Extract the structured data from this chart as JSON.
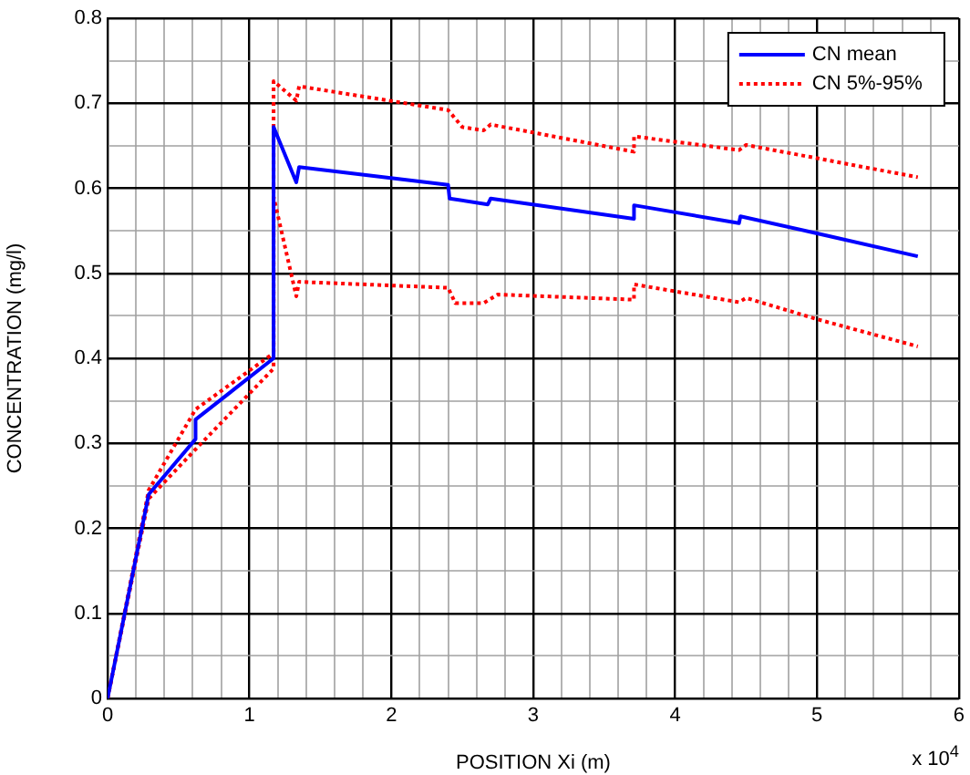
{
  "chart_data": {
    "type": "line",
    "xlabel": "POSITION Xi (m)",
    "ylabel": "CONCENTRATION (mg/l)",
    "annotations": [
      "x 10$^{4}$"
    ],
    "xlim": [
      0,
      6
    ],
    "ylim": [
      0,
      0.8
    ],
    "xticks": [
      0,
      {
        "value": 0.2,
        "label": null
      },
      {
        "value": 0.4,
        "label": null
      },
      {
        "value": 0.6,
        "label": null
      },
      {
        "value": 0.8,
        "label": null
      },
      1,
      {
        "value": 1.2,
        "label": null
      },
      {
        "value": 1.4,
        "label": null
      },
      {
        "value": 1.6,
        "label": null
      },
      {
        "value": 1.8,
        "label": null
      },
      2,
      {
        "value": 2.2,
        "label": null
      },
      {
        "value": 2.4,
        "label": null
      },
      {
        "value": 2.6,
        "label": null
      },
      {
        "value": 2.8,
        "label": null
      },
      3,
      {
        "value": 3.2,
        "label": null
      },
      {
        "value": 3.4,
        "label": null
      },
      {
        "value": 3.6,
        "label": null
      },
      {
        "value": 3.8,
        "label": null
      },
      4,
      {
        "value": 4.2,
        "label": null
      },
      {
        "value": 4.4,
        "label": null
      },
      {
        "value": 4.6,
        "label": null
      },
      {
        "value": 4.8,
        "label": null
      },
      5,
      {
        "value": 5.2,
        "label": null
      },
      {
        "value": 5.4,
        "label": null
      },
      {
        "value": 5.6,
        "label": null
      },
      {
        "value": 5.8,
        "label": null
      },
      6
    ],
    "yticks": [
      0,
      {
        "value": 0.05,
        "label": null
      },
      0.1,
      {
        "value": 0.15,
        "label": null
      },
      0.2,
      {
        "value": 0.25,
        "label": null
      },
      0.3,
      {
        "value": 0.35,
        "label": null
      },
      0.4,
      {
        "value": 0.45,
        "label": null
      },
      0.5,
      {
        "value": 0.55,
        "label": null
      },
      0.6,
      {
        "value": 0.65,
        "label": null
      },
      0.7,
      {
        "value": 0.75,
        "label": null
      },
      0.8
    ],
    "grid": true,
    "legend": "top right",
    "marker": "none",
    "series": [
      {
        "name": "CN mean",
        "color": "#0000ff",
        "line_style": "solid",
        "x": [
          0,
          0.29,
          0.62,
          0.62,
          1.17,
          1.17,
          1.33,
          1.35,
          2.4,
          2.41,
          2.68,
          2.7,
          3.71,
          3.71,
          4.45,
          4.46,
          5,
          5.71
        ],
        "values": [
          0,
          0.24,
          0.305,
          0.328,
          0.4,
          0.672,
          0.607,
          0.625,
          0.604,
          0.588,
          0.581,
          0.588,
          0.564,
          0.58,
          0.559,
          0.567,
          0.547,
          0.52
        ]
      },
      {
        "name": "CN 5%-95%",
        "color": "#ff0000",
        "line_style": "dotted",
        "x": [
          0,
          0.29,
          0.62,
          1.17,
          1.17,
          1.33,
          1.35,
          2.4,
          2.5,
          2.65,
          2.7,
          3.71,
          3.71,
          4.45,
          4.5,
          5.71
        ],
        "values": [
          0,
          0.245,
          0.34,
          0.406,
          0.726,
          0.703,
          0.72,
          0.692,
          0.672,
          0.668,
          0.675,
          0.643,
          0.661,
          0.645,
          0.651,
          0.613
        ]
      },
      {
        "color": "#ff0000",
        "line_style": "dotted",
        "x": [
          0,
          0.29,
          0.62,
          1.17,
          1.17,
          1.33,
          1.35,
          2.4,
          2.45,
          2.65,
          2.75,
          3.71,
          3.71,
          4.45,
          4.5,
          5,
          5.71
        ],
        "values": [
          0,
          0.235,
          0.293,
          0.388,
          0.59,
          0.473,
          0.49,
          0.483,
          0.465,
          0.465,
          0.475,
          0.469,
          0.487,
          0.466,
          0.471,
          0.446,
          0.414
        ]
      }
    ]
  }
}
